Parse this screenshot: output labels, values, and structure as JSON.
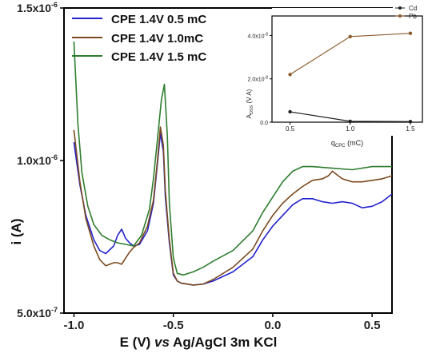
{
  "chart_data": [
    {
      "type": "line",
      "xlabel_parts": {
        "prefix": "E (V) ",
        "italic": "vs",
        "suffix": " Ag/AgCl 3m KCl"
      },
      "ylabel": "i (A)",
      "x_ticks": [
        "-1.0",
        "-0.5",
        "0.0",
        "0.5"
      ],
      "x_tick_values": [
        -1.0,
        -0.5,
        0.0,
        0.5
      ],
      "y_ticks": [
        {
          "value": 5e-07,
          "mantissa": "5.0x10",
          "exp": "-7"
        },
        {
          "value": 1e-06,
          "mantissa": "1.0x10",
          "exp": "-6"
        },
        {
          "value": 1.5e-06,
          "mantissa": "1.5x10",
          "exp": "-6"
        }
      ],
      "xlim": [
        -1.05,
        0.6
      ],
      "ylim": [
        5e-07,
        1.5e-06
      ],
      "legend_position": "top-left",
      "series": [
        {
          "name": "CPE 1.4V 0.5 mC",
          "color": "#2222cc",
          "x": [
            -1.0,
            -0.97,
            -0.94,
            -0.9,
            -0.87,
            -0.84,
            -0.8,
            -0.78,
            -0.76,
            -0.74,
            -0.72,
            -0.7,
            -0.67,
            -0.63,
            -0.6,
            -0.58,
            -0.565,
            -0.55,
            -0.54,
            -0.52,
            -0.5,
            -0.48,
            -0.46,
            -0.43,
            -0.4,
            -0.35,
            -0.3,
            -0.2,
            -0.1,
            -0.05,
            0.0,
            0.05,
            0.1,
            0.15,
            0.2,
            0.25,
            0.3,
            0.35,
            0.4,
            0.45,
            0.5,
            0.55,
            0.6
          ],
          "y": [
            1.06e-06,
            9.2e-07,
            8.2e-07,
            7.4e-07,
            7.05e-07,
            6.95e-07,
            7.2e-07,
            7.55e-07,
            7.75e-07,
            7.45e-07,
            7.3e-07,
            7.2e-07,
            7.25e-07,
            7.7e-07,
            8.6e-07,
            9.9e-07,
            1.09e-06,
            1.03e-06,
            8.8e-07,
            7.3e-07,
            6.25e-07,
            6.05e-07,
            5.98e-07,
            5.95e-07,
            5.92e-07,
            5.95e-07,
            6.05e-07,
            6.35e-07,
            6.85e-07,
            7.4e-07,
            7.85e-07,
            8.2e-07,
            8.55e-07,
            8.75e-07,
            8.75e-07,
            8.65e-07,
            8.6e-07,
            8.65e-07,
            8.6e-07,
            8.45e-07,
            8.5e-07,
            8.65e-07,
            8.9e-07
          ]
        },
        {
          "name": "CPE 1.4V 1.0mC",
          "color": "#7a4a20",
          "x": [
            -1.0,
            -0.97,
            -0.94,
            -0.9,
            -0.87,
            -0.84,
            -0.8,
            -0.78,
            -0.76,
            -0.74,
            -0.72,
            -0.7,
            -0.67,
            -0.63,
            -0.6,
            -0.58,
            -0.565,
            -0.55,
            -0.54,
            -0.52,
            -0.5,
            -0.48,
            -0.46,
            -0.43,
            -0.4,
            -0.35,
            -0.3,
            -0.2,
            -0.1,
            -0.05,
            0.0,
            0.05,
            0.1,
            0.15,
            0.2,
            0.25,
            0.28,
            0.3,
            0.32,
            0.35,
            0.4,
            0.45,
            0.5,
            0.55,
            0.6
          ],
          "y": [
            1.1e-06,
            9.3e-07,
            8.1e-07,
            7.2e-07,
            6.75e-07,
            6.55e-07,
            6.65e-07,
            6.65e-07,
            6.6e-07,
            6.8e-07,
            7e-07,
            7.15e-07,
            7.3e-07,
            7.85e-07,
            8.7e-07,
            1e-06,
            1.11e-06,
            1.05e-06,
            9e-07,
            7.4e-07,
            6.3e-07,
            6.05e-07,
            5.98e-07,
            5.95e-07,
            5.92e-07,
            5.95e-07,
            6.1e-07,
            6.5e-07,
            7.1e-07,
            7.7e-07,
            8.2e-07,
            8.6e-07,
            8.9e-07,
            9.15e-07,
            9.35e-07,
            9.4e-07,
            9.5e-07,
            9.65e-07,
            9.55e-07,
            9.4e-07,
            9.3e-07,
            9.3e-07,
            9.35e-07,
            9.4e-07,
            9.5e-07
          ]
        },
        {
          "name": "CPE 1.4V 1.5 mC",
          "color": "#2e7d2e",
          "x": [
            -1.0,
            -0.98,
            -0.96,
            -0.93,
            -0.9,
            -0.86,
            -0.82,
            -0.78,
            -0.74,
            -0.7,
            -0.66,
            -0.62,
            -0.6,
            -0.58,
            -0.56,
            -0.545,
            -0.53,
            -0.52,
            -0.5,
            -0.48,
            -0.45,
            -0.4,
            -0.35,
            -0.3,
            -0.2,
            -0.1,
            -0.05,
            0.0,
            0.05,
            0.1,
            0.15,
            0.2,
            0.3,
            0.4,
            0.5,
            0.55,
            0.6
          ],
          "y": [
            1.39e-06,
            1.12e-06,
            9.6e-07,
            8.5e-07,
            7.9e-07,
            7.55e-07,
            7.4e-07,
            7.3e-07,
            7.25e-07,
            7.2e-07,
            7.55e-07,
            8.4e-07,
            9.4e-07,
            1.07e-06,
            1.2e-06,
            1.25e-06,
            1.08e-06,
            8.6e-07,
            6.8e-07,
            6.3e-07,
            6.25e-07,
            6.35e-07,
            6.5e-07,
            6.7e-07,
            7.05e-07,
            7.7e-07,
            8.3e-07,
            8.8e-07,
            9.3e-07,
            9.65e-07,
            9.8e-07,
            9.8e-07,
            9.75e-07,
            9.7e-07,
            9.8e-07,
            9.8e-07,
            9.8e-07
          ]
        }
      ]
    },
    {
      "type": "line",
      "position": "top-right inset",
      "ylabel_parts": {
        "main": "A",
        "sub": "DSS",
        "suffix": " (V A)"
      },
      "xlabel_parts": {
        "main": "q",
        "sub": "CPC",
        "suffix": " (mC)"
      },
      "x_ticks": [
        "0.5",
        "1.0",
        "1.5"
      ],
      "x_tick_values": [
        0.5,
        1.0,
        1.5
      ],
      "y_ticks": [
        {
          "value": 0,
          "label": "0.0"
        },
        {
          "value": 2e-08,
          "mantissa": "2.0x10",
          "exp": "-8"
        },
        {
          "value": 4e-08,
          "mantissa": "4.0x10",
          "exp": "-8"
        }
      ],
      "xlim": [
        0.35,
        1.6
      ],
      "ylim": [
        0,
        4.9e-08
      ],
      "legend_position": "top-right",
      "series": [
        {
          "name": "Cd",
          "color": "#222222",
          "x": [
            0.5,
            1.0,
            1.5
          ],
          "y": [
            4.8e-09,
            4e-10,
            3e-10
          ]
        },
        {
          "name": "Pb",
          "color": "#8b5a2b",
          "x": [
            0.5,
            1.0,
            1.5
          ],
          "y": [
            2.2e-08,
            3.95e-08,
            4.1e-08
          ]
        }
      ]
    }
  ]
}
